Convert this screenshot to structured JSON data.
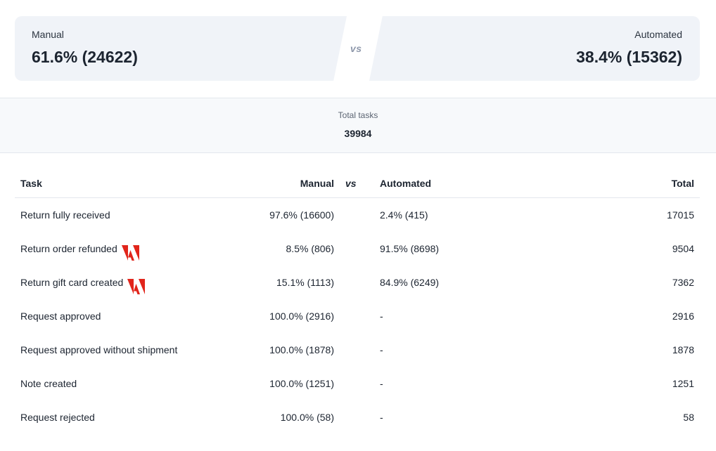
{
  "summary": {
    "manual": {
      "label": "Manual",
      "value": "61.6% (24622)"
    },
    "vs": "vs",
    "automated": {
      "label": "Automated",
      "value": "38.4% (15362)"
    }
  },
  "totals": {
    "label": "Total tasks",
    "value": "39984"
  },
  "table": {
    "headers": {
      "task": "Task",
      "manual": "Manual",
      "vs": "vs",
      "automated": "Automated",
      "total": "Total"
    },
    "rows": [
      {
        "task": "Return fully received",
        "manual": "97.6% (16600)",
        "automated": "2.4% (415)",
        "total": "17015",
        "icon": ""
      },
      {
        "task": "Return order refunded",
        "manual": "8.5% (806)",
        "automated": "91.5% (8698)",
        "total": "9504",
        "icon": "adobe-icon"
      },
      {
        "task": "Return gift card created",
        "manual": "15.1% (1113)",
        "automated": "84.9% (6249)",
        "total": "7362",
        "icon": "adobe-icon"
      },
      {
        "task": "Request approved",
        "manual": "100.0% (2916)",
        "automated": "-",
        "total": "2916",
        "icon": ""
      },
      {
        "task": "Request approved without shipment",
        "manual": "100.0% (1878)",
        "automated": "-",
        "total": "1878",
        "icon": ""
      },
      {
        "task": "Note created",
        "manual": "100.0% (1251)",
        "automated": "-",
        "total": "1251",
        "icon": ""
      },
      {
        "task": "Request rejected",
        "manual": "100.0% (58)",
        "automated": "-",
        "total": "58",
        "icon": ""
      }
    ]
  },
  "colors": {
    "panel_bg": "#f0f3f8",
    "adobe_red": "#e1251b",
    "vs_gray": "#8e98ab"
  }
}
